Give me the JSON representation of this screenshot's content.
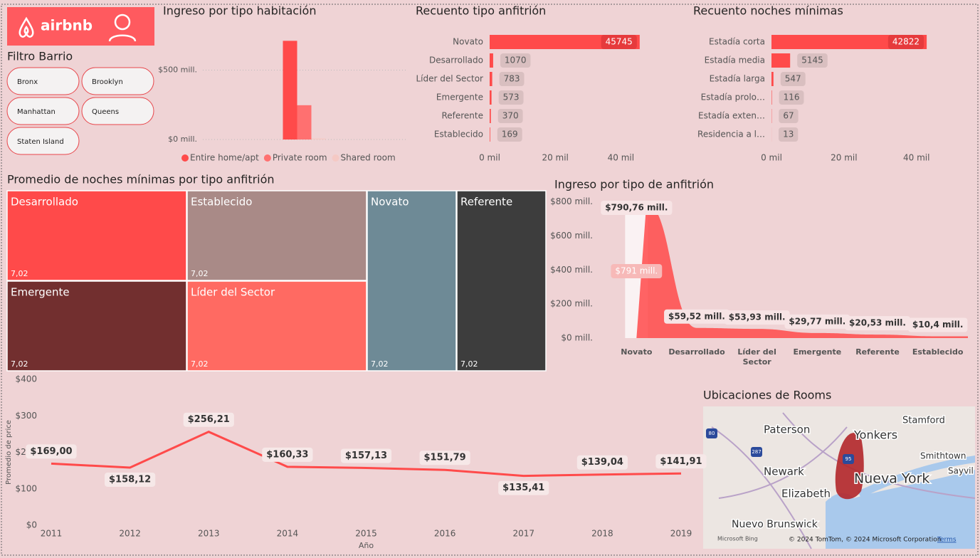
{
  "header": {
    "logo": "airbnb"
  },
  "filter": {
    "title": "Filtro Barrio",
    "options": [
      "Bronx",
      "Brooklyn",
      "Manhattan",
      "Queens",
      "Staten Island"
    ]
  },
  "chart_data": [
    {
      "type": "column",
      "title": "Ingreso por tipo habitación",
      "categories": [
        "Entire home/apt",
        "Private room",
        "Shared room"
      ],
      "values": [
        711,
        247,
        7
      ],
      "colors": [
        "#ff4a4a",
        "#ff7070",
        "#f5c9c4"
      ],
      "ylim": [
        0,
        800
      ],
      "yticks": [
        {
          "value": 0,
          "label": "$0 mill."
        },
        {
          "value": 500,
          "label": "$500 mill."
        }
      ],
      "grid": true,
      "legend": "bottom"
    },
    {
      "type": "hbar",
      "title": "Recuento tipo anfitrión",
      "categories": [
        "Novato",
        "Desarrollado",
        "Líder del Sector",
        "Emergente",
        "Referente",
        "Establecido"
      ],
      "values": [
        45745,
        1070,
        783,
        573,
        370,
        169
      ],
      "color": "#ff4a4a",
      "xlim": [
        0,
        46000
      ],
      "xticks": [
        {
          "value": 0,
          "label": "0 mil"
        },
        {
          "value": 20000,
          "label": "20 mil"
        },
        {
          "value": 40000,
          "label": "40 mil"
        }
      ]
    },
    {
      "type": "hbar",
      "title": "Recuento noches mínimas",
      "categories": [
        "Estadía corta",
        "Estadía media",
        "Estadía larga",
        "Estadía prolo…",
        "Estadía exten…",
        "Residencia a l…"
      ],
      "values": [
        42822,
        5145,
        547,
        116,
        67,
        13
      ],
      "color": "#ff4a4a",
      "xlim": [
        0,
        43000
      ],
      "xticks": [
        {
          "value": 0,
          "label": "0 mil"
        },
        {
          "value": 20000,
          "label": "20 mil"
        },
        {
          "value": 40000,
          "label": "40 mil"
        }
      ]
    },
    {
      "type": "treemap",
      "title": "Promedio de noches mínimas por tipo anfitrión",
      "categories": [
        "Desarrollado",
        "Establecido",
        "Novato",
        "Referente",
        "Emergente",
        "Líder del Sector"
      ],
      "values": [
        7.02,
        7.02,
        7.02,
        7.02,
        7.02,
        7.02
      ],
      "value_labels": [
        "7,02",
        "7,02",
        "7,02",
        "7,02",
        "7,02",
        "7,02"
      ],
      "colors": [
        "#ff4a4a",
        "#a98a87",
        "#6e8a96",
        "#3d3d3d",
        "#722f2f",
        "#ff6a62"
      ]
    },
    {
      "type": "area",
      "title": "Ingreso por tipo de anfitrión",
      "categories": [
        "Novato",
        "Desarrollado",
        "Líder del Sector",
        "Emergente",
        "Referente",
        "Establecido"
      ],
      "values": [
        790.76,
        59.52,
        53.93,
        29.77,
        20.53,
        10.4
      ],
      "value_labels": [
        "$790,76 mill.",
        "$59,52 mill.",
        "$53,93 mill.",
        "$29,77 mill.",
        "$20,53 mill.",
        "$10,4 mill."
      ],
      "color": "#ff4a4a",
      "annotation": "$791 mill.",
      "ylim": [
        0,
        840
      ],
      "yticks": [
        {
          "value": 0,
          "label": "$0 mill."
        },
        {
          "value": 200,
          "label": "$200 mill."
        },
        {
          "value": 400,
          "label": "$400 mill."
        },
        {
          "value": 600,
          "label": "$600 mill."
        },
        {
          "value": 800,
          "label": "$800 mill."
        }
      ]
    },
    {
      "type": "line",
      "x_label": "Año",
      "y_label": "Promedio de price",
      "x": [
        2011,
        2012,
        2013,
        2014,
        2015,
        2016,
        2017,
        2018,
        2019
      ],
      "values": [
        169.0,
        158.12,
        256.21,
        160.33,
        157.13,
        151.79,
        135.41,
        139.04,
        141.91
      ],
      "value_labels": [
        "$169,00",
        "$158,12",
        "$256,21",
        "$160,33",
        "$157,13",
        "$151,79",
        "$135,41",
        "$139,04",
        "$141,91"
      ],
      "color": "#ff4a4a",
      "xlim": [
        2011,
        2019
      ],
      "xticks": [
        2011,
        2012,
        2013,
        2014,
        2015,
        2016,
        2017,
        2018,
        2019
      ],
      "ylim": [
        0,
        400
      ],
      "yticks": [
        {
          "value": 0,
          "label": "$0"
        },
        {
          "value": 100,
          "label": "$100"
        },
        {
          "value": 200,
          "label": "$200"
        },
        {
          "value": 300,
          "label": "$300"
        },
        {
          "value": 400,
          "label": "$400"
        }
      ]
    }
  ],
  "map": {
    "title": "Ubicaciones de Rooms",
    "places": [
      "Paterson",
      "Yonkers",
      "Stamford",
      "Smithtown",
      "Sayvil",
      "Newark",
      "Nueva York",
      "Elizabeth",
      "Nuevo Brunswick"
    ],
    "shields": [
      "80",
      "287",
      "95"
    ],
    "provider": "Microsoft Bing",
    "attribution": "© 2024 TomTom, © 2024 Microsoft Corporation",
    "terms": "Terms"
  }
}
